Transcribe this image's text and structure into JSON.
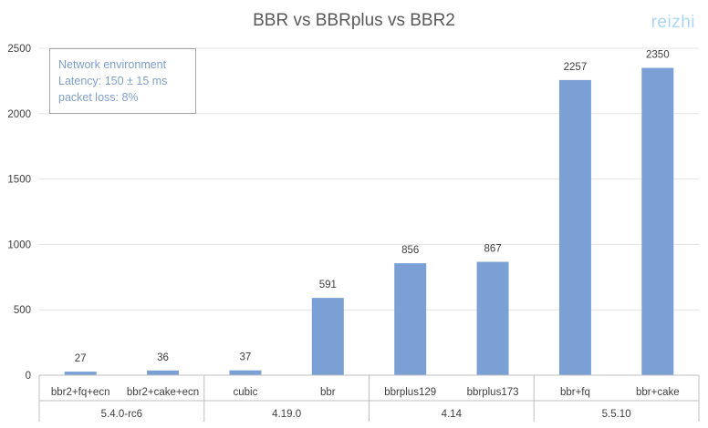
{
  "chart_data": {
    "type": "bar",
    "title": "BBR vs BBRplus vs BBR2",
    "watermark": "reizhi",
    "categories": [
      "bbr2+fq+ecn",
      "bbr2+cake+ecn",
      "cubic",
      "bbr",
      "bbrplus129",
      "bbrplus173",
      "bbr+fq",
      "bbr+cake"
    ],
    "groups": [
      {
        "label": "5.4.0-rc6",
        "span": 2
      },
      {
        "label": "4.19.0",
        "span": 2
      },
      {
        "label": "4.14",
        "span": 2
      },
      {
        "label": "5.5.10",
        "span": 2
      }
    ],
    "values": [
      27,
      36,
      37,
      591,
      856,
      867,
      2257,
      2350
    ],
    "data_labels": [
      "27",
      "36",
      "37",
      "591",
      "856",
      "867",
      "2257",
      "2350"
    ],
    "ylim": [
      0,
      2500
    ],
    "yticks": [
      0,
      500,
      1000,
      1500,
      2000,
      2500
    ],
    "ytick_labels": [
      "0",
      "500",
      "1000",
      "1500",
      "2000",
      "2500"
    ],
    "xlabel": "",
    "ylabel": "",
    "grid": true,
    "legend": "none",
    "annotation": {
      "lines": [
        "Network environment",
        "Latency: 150 ± 15 ms",
        "packet loss: 8%"
      ]
    },
    "colors": {
      "bar": "#7ba0d6",
      "grid": "#e3e3e3",
      "axis": "#bfbfbf",
      "text": "#404040",
      "title": "#595959",
      "annotation_text": "#7f9fd0",
      "watermark": "#a9d7f3"
    }
  }
}
